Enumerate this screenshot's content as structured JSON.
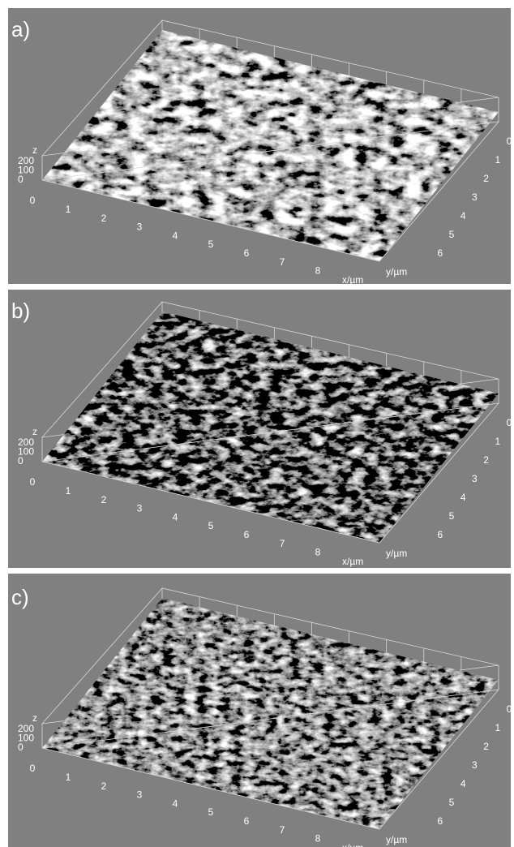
{
  "panels": [
    {
      "label": "a)",
      "z_label": "z",
      "z_ticks": [
        "200",
        "100",
        "0"
      ],
      "x_ticks": [
        "0",
        "1",
        "2",
        "3",
        "4",
        "5",
        "6",
        "7",
        "8"
      ],
      "x_label": "x/µm",
      "y_ticks": [
        "0",
        "1",
        "2",
        "3",
        "4",
        "5",
        "6"
      ],
      "y_label": "y/µm"
    },
    {
      "label": "b)",
      "z_label": "z",
      "z_ticks": [
        "200",
        "100",
        "0"
      ],
      "x_ticks": [
        "0",
        "1",
        "2",
        "3",
        "4",
        "5",
        "6",
        "7",
        "8"
      ],
      "x_label": "x/µm",
      "y_ticks": [
        "0",
        "1",
        "2",
        "3",
        "4",
        "5",
        "6"
      ],
      "y_label": "y/µm"
    },
    {
      "label": "c)",
      "z_label": "z",
      "z_ticks": [
        "200",
        "100",
        "0"
      ],
      "x_ticks": [
        "0",
        "1",
        "2",
        "3",
        "4",
        "5",
        "6",
        "7",
        "8"
      ],
      "x_label": "x/µm",
      "y_ticks": [
        "0",
        "1",
        "2",
        "3",
        "4",
        "5",
        "6"
      ],
      "y_label": "y/µm"
    }
  ]
}
